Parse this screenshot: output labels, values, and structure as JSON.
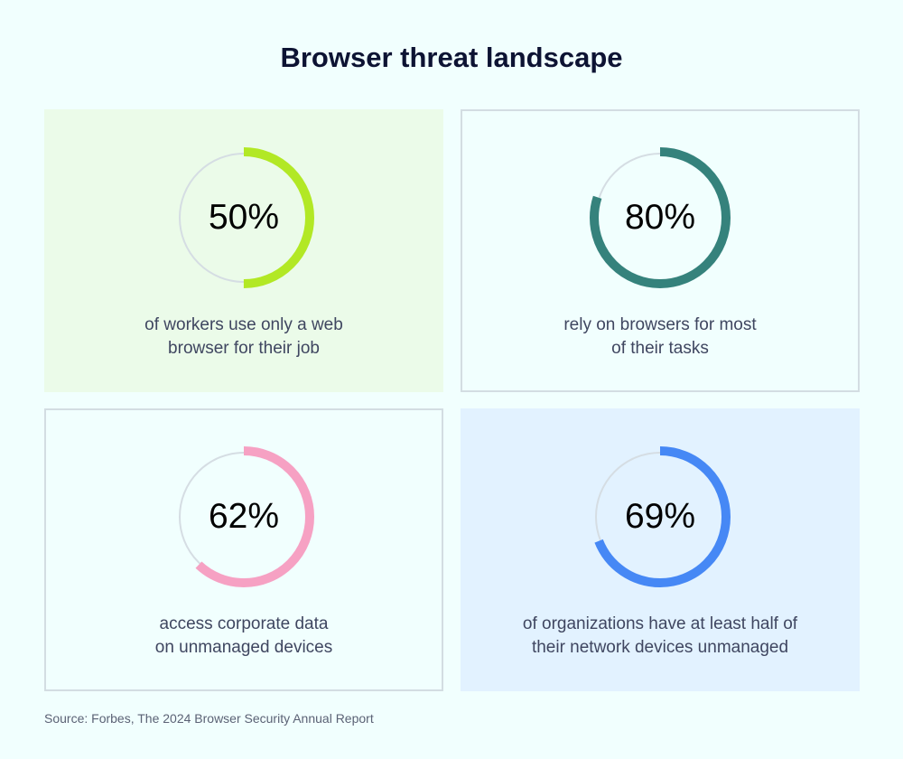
{
  "title": "Browser threat landscape",
  "source": "Source: Forbes, The 2024 Browser Security Annual Report",
  "chart_data": {
    "type": "donut",
    "title": "Browser threat landscape",
    "items": [
      {
        "value": 50,
        "label": "50%",
        "desc1": "of workers use only a web",
        "desc2": "browser for their job",
        "color": "#b2e825",
        "card_bg": "#ebfbe9",
        "bordered": false
      },
      {
        "value": 80,
        "label": "80%",
        "desc1": "rely on browsers for most",
        "desc2": "of their tasks",
        "color": "#35827c",
        "card_bg": "#f1fffe",
        "bordered": true
      },
      {
        "value": 62,
        "label": "62%",
        "desc1": "access corporate data",
        "desc2": "on unmanaged devices",
        "color": "#f6a1c3",
        "card_bg": "#f1fffe",
        "bordered": true
      },
      {
        "value": 69,
        "label": "69%",
        "desc1": "of organizations have at least half of",
        "desc2": "their network devices unmanaged",
        "color": "#4688f5",
        "card_bg": "#e2f2ff",
        "bordered": false
      }
    ],
    "track_color": "#d5dde3"
  }
}
